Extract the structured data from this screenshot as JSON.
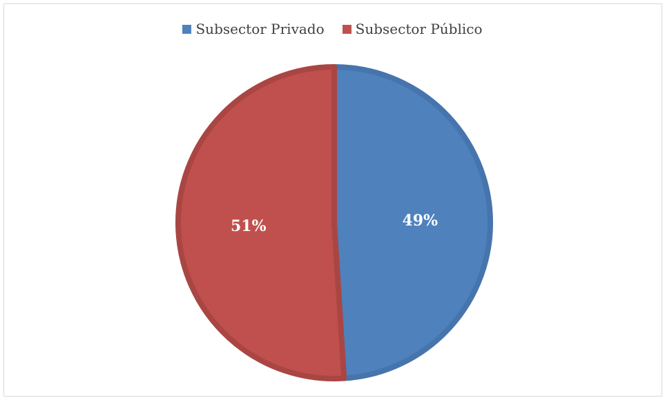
{
  "chart_data": {
    "type": "pie",
    "categories": [
      "Subsector Privado",
      "Subsector Público"
    ],
    "values": [
      49,
      51
    ],
    "labels": [
      "49%",
      "51%"
    ],
    "colors": [
      "#4f81bd",
      "#c0504d"
    ],
    "border_colors": [
      "#4674ad",
      "#a94643"
    ],
    "legend_position": "top",
    "title": ""
  }
}
